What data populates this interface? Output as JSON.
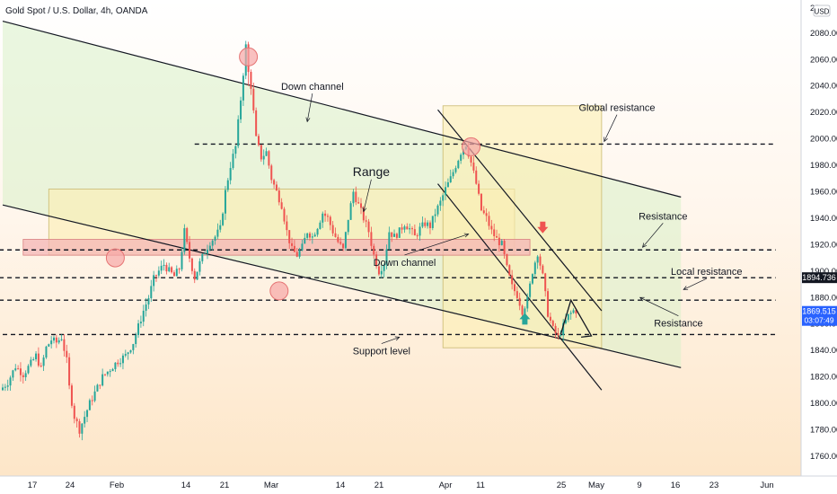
{
  "header": {
    "title": "Gold Spot / U.S. Dollar, 4h, OANDA",
    "currency": "USD"
  },
  "colors": {
    "up": "#26a69a",
    "down": "#ef5350",
    "bg_top": "#ffffff",
    "bg_bottom": "#fde7cb",
    "green_zone": "#d8f0c8",
    "yellow_zone": "#fbeeb2",
    "pink_zone": "#f4b6b6"
  },
  "chart_data": {
    "type": "candlestick",
    "title": "Gold Spot / U.S. Dollar, 4h, OANDA",
    "ylim": [
      1745,
      2105
    ],
    "y_ticks": [
      1760,
      1780,
      1800,
      1820,
      1840,
      1860,
      1880,
      1900,
      1920,
      1940,
      1960,
      1980,
      2000,
      2020,
      2040,
      2060,
      2080
    ],
    "top_tick_label": "21",
    "x_ticks": [
      "17",
      "24",
      "Feb",
      "14",
      "21",
      "Mar",
      "14",
      "21",
      "Apr",
      "11",
      "25",
      "May",
      "9",
      "16",
      "23",
      "Jun"
    ],
    "price_path": [
      [
        0,
        1810
      ],
      [
        3,
        1816
      ],
      [
        6,
        1828
      ],
      [
        9,
        1822
      ],
      [
        12,
        1830
      ],
      [
        14,
        1836
      ],
      [
        16,
        1826
      ],
      [
        18,
        1842
      ],
      [
        20,
        1848
      ],
      [
        22,
        1846
      ],
      [
        24,
        1850
      ],
      [
        26,
        1832
      ],
      [
        27,
        1812
      ],
      [
        29,
        1790
      ],
      [
        31,
        1780
      ],
      [
        33,
        1790
      ],
      [
        35,
        1800
      ],
      [
        37,
        1808
      ],
      [
        40,
        1820
      ],
      [
        43,
        1826
      ],
      [
        46,
        1832
      ],
      [
        49,
        1836
      ],
      [
        52,
        1846
      ],
      [
        54,
        1858
      ],
      [
        56,
        1870
      ],
      [
        58,
        1880
      ],
      [
        60,
        1894
      ],
      [
        62,
        1900
      ],
      [
        64,
        1905
      ],
      [
        66,
        1900
      ],
      [
        68,
        1896
      ],
      [
        70,
        1902
      ],
      [
        72,
        1930
      ],
      [
        74,
        1910
      ],
      [
        76,
        1895
      ],
      [
        78,
        1906
      ],
      [
        80,
        1915
      ],
      [
        82,
        1922
      ],
      [
        84,
        1926
      ],
      [
        86,
        1932
      ],
      [
        88,
        1960
      ],
      [
        90,
        1980
      ],
      [
        92,
        1994
      ],
      [
        94,
        2030
      ],
      [
        96,
        2070
      ],
      [
        97,
        2050
      ],
      [
        98,
        2040
      ],
      [
        100,
        2000
      ],
      [
        102,
        1986
      ],
      [
        104,
        1990
      ],
      [
        106,
        1970
      ],
      [
        108,
        1960
      ],
      [
        110,
        1950
      ],
      [
        112,
        1930
      ],
      [
        114,
        1916
      ],
      [
        116,
        1912
      ],
      [
        118,
        1918
      ],
      [
        120,
        1930
      ],
      [
        122,
        1926
      ],
      [
        124,
        1934
      ],
      [
        126,
        1944
      ],
      [
        128,
        1940
      ],
      [
        130,
        1930
      ],
      [
        132,
        1922
      ],
      [
        134,
        1916
      ],
      [
        136,
        1940
      ],
      [
        138,
        1960
      ],
      [
        140,
        1950
      ],
      [
        142,
        1940
      ],
      [
        144,
        1930
      ],
      [
        146,
        1912
      ],
      [
        148,
        1900
      ],
      [
        150,
        1906
      ],
      [
        152,
        1930
      ],
      [
        154,
        1926
      ],
      [
        156,
        1930
      ],
      [
        158,
        1936
      ],
      [
        160,
        1932
      ],
      [
        162,
        1926
      ],
      [
        164,
        1932
      ],
      [
        166,
        1936
      ],
      [
        168,
        1934
      ],
      [
        170,
        1944
      ],
      [
        172,
        1952
      ],
      [
        174,
        1962
      ],
      [
        176,
        1970
      ],
      [
        178,
        1980
      ],
      [
        180,
        1990
      ],
      [
        182,
        1996
      ],
      [
        184,
        1982
      ],
      [
        186,
        1966
      ],
      [
        188,
        1946
      ],
      [
        190,
        1940
      ],
      [
        192,
        1930
      ],
      [
        194,
        1924
      ],
      [
        196,
        1920
      ],
      [
        198,
        1902
      ],
      [
        200,
        1888
      ],
      [
        202,
        1882
      ],
      [
        204,
        1870
      ],
      [
        206,
        1878
      ],
      [
        208,
        1900
      ],
      [
        210,
        1914
      ],
      [
        212,
        1896
      ],
      [
        214,
        1868
      ],
      [
        216,
        1856
      ],
      [
        218,
        1850
      ],
      [
        220,
        1858
      ],
      [
        222,
        1866
      ],
      [
        224,
        1870
      ]
    ],
    "lines": [
      {
        "name": "upper-channel-line",
        "from": [
          0,
          2089
        ],
        "to": [
          265,
          1956
        ]
      },
      {
        "name": "lower-channel-line",
        "from": [
          0,
          1950
        ],
        "to": [
          265,
          1827
        ]
      },
      {
        "name": "steep-channel-upper",
        "from": [
          170,
          2022
        ],
        "to": [
          234,
          1870
        ]
      },
      {
        "name": "steep-channel-lower",
        "from": [
          170,
          1966
        ],
        "to": [
          234,
          1810
        ]
      }
    ],
    "levels": [
      {
        "name": "global-resistance-line",
        "value": 1996,
        "x_start": 75,
        "x_end": 302
      },
      {
        "name": "resistance-line",
        "value": 1916,
        "x_start": -14,
        "x_end": 302
      },
      {
        "name": "local-resistance-line",
        "value": 1895,
        "x_start": -14,
        "x_end": 302
      },
      {
        "name": "mid-resistance-line",
        "value": 1878,
        "x_start": -14,
        "x_end": 302
      },
      {
        "name": "support-level-line",
        "value": 1852,
        "x_start": 0,
        "x_end": 302
      }
    ],
    "zones": [
      {
        "name": "down-channel-zone",
        "type": "poly",
        "points": [
          [
            0,
            2089
          ],
          [
            265,
            1956
          ],
          [
            265,
            1827
          ],
          [
            0,
            1950
          ]
        ],
        "color": "green_zone"
      },
      {
        "name": "range-zone",
        "type": "rect",
        "x": [
          18,
          200
        ],
        "y": [
          1912,
          1962
        ],
        "color": "yellow_zone"
      },
      {
        "name": "breakout-zone",
        "type": "rect",
        "x": [
          172,
          234
        ],
        "y": [
          1842,
          2025
        ],
        "color": "yellow_zone"
      },
      {
        "name": "resistance-zone",
        "type": "rect",
        "x": [
          8,
          206
        ],
        "y": [
          1912,
          1924
        ],
        "color": "pink_zone"
      }
    ],
    "circles": [
      [
        96,
        2062
      ],
      [
        183,
        1994
      ],
      [
        44,
        1910
      ],
      [
        108,
        1885
      ]
    ],
    "annotations": [
      {
        "name": "down-channel-label",
        "text": "Down channel",
        "at": [
          121,
          2037
        ],
        "arrow_to": [
          119,
          2013
        ]
      },
      {
        "name": "global-resistance-label",
        "text": "Global resistance",
        "at": [
          240,
          2021
        ],
        "arrow_to": [
          235,
          1998
        ]
      },
      {
        "name": "range-label",
        "text": "Range",
        "at": [
          144,
          1972
        ],
        "size": 14,
        "arrow_to": [
          141,
          1945
        ]
      },
      {
        "name": "resistance-label",
        "text": "Resistance",
        "at": [
          258,
          1939
        ],
        "arrow_to": [
          250,
          1918
        ]
      },
      {
        "name": "down-channel-2-label",
        "text": "Down channel",
        "at": [
          157,
          1904
        ],
        "arrow_to": [
          182,
          1928
        ]
      },
      {
        "name": "local-resistance-label",
        "text": "Local resistance",
        "at": [
          275,
          1897
        ],
        "arrow_to": [
          266,
          1886
        ]
      },
      {
        "name": "resistance-2-label",
        "text": "Resistance",
        "at": [
          264,
          1858
        ],
        "arrow_to": [
          249,
          1880
        ]
      },
      {
        "name": "support-level-label",
        "text": "Support level",
        "at": [
          148,
          1837
        ],
        "arrow_to": [
          155,
          1850
        ]
      }
    ],
    "price_labels": [
      {
        "name": "local-resistance-price-tag",
        "value": "1894.736",
        "y": 1895,
        "bg": "#131722",
        "fg": "#ffffff"
      },
      {
        "name": "current-price-tag",
        "value": "1869.515",
        "sub": "03:07:49",
        "y": 1869.5,
        "bg": "#2962ff",
        "fg": "#ffffff"
      }
    ],
    "signal_arrows": [
      {
        "name": "sell-arrow-icon",
        "dir": "down",
        "color": "#ef5350",
        "at": [
          211,
          1932
        ]
      },
      {
        "name": "buy-arrow-icon",
        "dir": "up",
        "color": "#26a69a",
        "at": [
          204,
          1865
        ]
      }
    ],
    "projection": [
      [
        218,
        1852
      ],
      [
        222,
        1878
      ],
      [
        230,
        1851
      ],
      [
        226,
        1850
      ]
    ]
  }
}
